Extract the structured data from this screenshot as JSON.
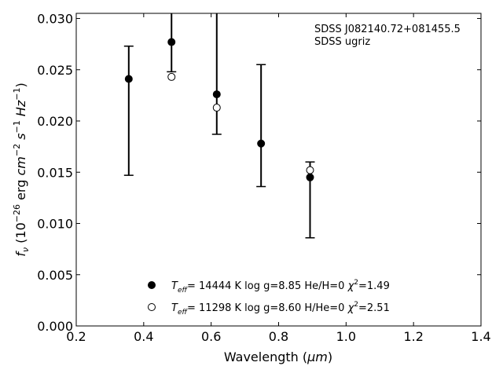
{
  "chart_data": {
    "type": "scatter",
    "xlabel_main": "Wavelength (",
    "xlabel_unit": "μm",
    "xlabel_close": ")",
    "ylabel_parts": {
      "f": "f",
      "nu": "ν",
      "pre": " (10",
      "exp1": "−26",
      "erg": " erg ",
      "cm": "cm",
      "exp2": "−2",
      "s": " s",
      "exp3": "−1",
      "hz": " Hz",
      "exp4": "−1",
      "close": ")"
    },
    "xlim": [
      0.2,
      1.4
    ],
    "ylim": [
      0.0,
      0.0305
    ],
    "xticks": [
      "0.2",
      "0.4",
      "0.6",
      "0.8",
      "1.0",
      "1.2",
      "1.4"
    ],
    "yticks": [
      "0.000",
      "0.005",
      "0.010",
      "0.015",
      "0.020",
      "0.025",
      "0.030"
    ],
    "annotations": [
      "SDSS J082140.72+081455.5",
      "SDSS ugriz"
    ],
    "observed": {
      "x": [
        0.3557,
        0.4825,
        0.6166,
        0.748,
        0.8932
      ],
      "y": [
        0.0241,
        0.0277,
        0.0226,
        0.0179,
        0.0145
      ],
      "yerr_low": [
        0.0147,
        0.0248,
        0.0187,
        0.0136,
        0.0086
      ],
      "yerr_high": [
        0.0273,
        0.04,
        0.04,
        0.0255,
        0.016
      ]
    },
    "series": [
      {
        "marker": "filled",
        "x": [
          0.3557,
          0.4825,
          0.6166,
          0.748,
          0.8932
        ],
        "y": [
          0.0241,
          0.0277,
          0.0226,
          0.0178,
          0.0145
        ],
        "legend": {
          "t": "T",
          "sub": "eff",
          "rest": "= 14444 K  log g=8.85  He/H=0  ",
          "chi": "χ",
          "sup": "2",
          "val": "=1.49"
        }
      },
      {
        "marker": "open",
        "x": [
          0.4825,
          0.6166,
          0.8932
        ],
        "y": [
          0.0243,
          0.0213,
          0.0152
        ],
        "legend": {
          "t": "T",
          "sub": "eff",
          "rest": "= 11298 K  log g=8.60  H/He=0  ",
          "chi": "χ",
          "sup": "2",
          "val": "=2.51"
        }
      }
    ],
    "legend_placement": "lower-center",
    "grid": false
  }
}
